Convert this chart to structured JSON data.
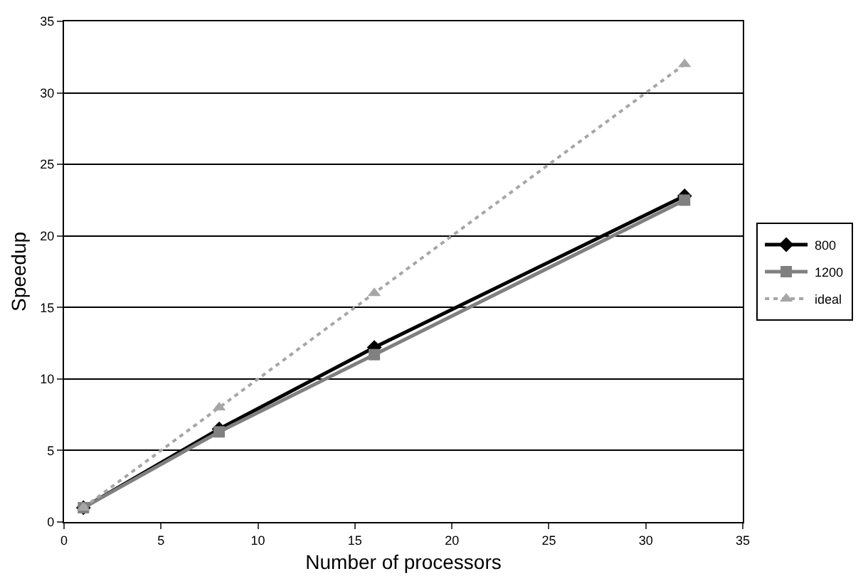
{
  "chart_data": {
    "type": "line",
    "xlabel": "Number of processors",
    "ylabel": "Speedup",
    "x": [
      1,
      8,
      16,
      32
    ],
    "series": [
      {
        "name": "800",
        "color": "#000000",
        "values": [
          1,
          6.5,
          12.2,
          22.8
        ],
        "marker": "diamond",
        "line_style": "solid"
      },
      {
        "name": "1200",
        "color": "#808080",
        "values": [
          1,
          6.3,
          11.7,
          22.5
        ],
        "marker": "square",
        "line_style": "solid"
      },
      {
        "name": "ideal",
        "color": "#a6a6a6",
        "values": [
          1,
          8,
          16,
          32
        ],
        "marker": "triangle",
        "line_style": "dotted"
      }
    ],
    "xlim": [
      0,
      35
    ],
    "xticks": [
      0,
      5,
      10,
      15,
      20,
      25,
      30,
      35
    ],
    "ylim": [
      0,
      35
    ],
    "yticks": [
      0,
      5,
      10,
      15,
      20,
      25,
      30,
      35
    ],
    "grid": "y",
    "legend": "right"
  }
}
